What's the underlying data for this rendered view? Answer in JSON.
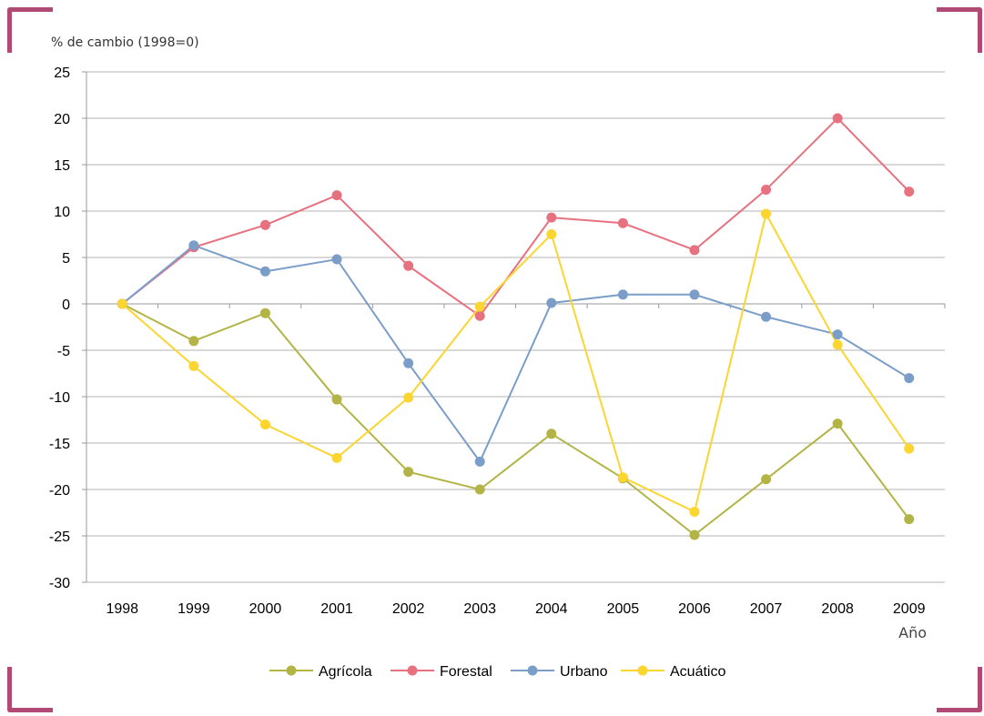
{
  "chart_data": {
    "type": "line",
    "ylabel": "% de cambio (1998=0)",
    "xlabel": "Año",
    "ylim": [
      -30,
      25
    ],
    "yticks": [
      25,
      20,
      15,
      10,
      5,
      0,
      -5,
      -10,
      -15,
      -20,
      -25,
      -30
    ],
    "categories": [
      "1998",
      "1999",
      "2000",
      "2001",
      "2002",
      "2003",
      "2004",
      "2005",
      "2006",
      "2007",
      "2008",
      "2009"
    ],
    "grid": true,
    "legend_position": "bottom",
    "series": [
      {
        "name": "Agrícola",
        "color": "#b3b446",
        "values": [
          0,
          -4,
          -1,
          -10.3,
          -18.1,
          -20,
          -14,
          -18.8,
          -24.9,
          -18.9,
          -12.9,
          -23.2
        ]
      },
      {
        "name": "Forestal",
        "color": "#e8717f",
        "values": [
          0,
          6.1,
          8.5,
          11.7,
          4.1,
          -1.3,
          9.3,
          8.7,
          5.8,
          12.3,
          20,
          12.1
        ]
      },
      {
        "name": "Urbano",
        "color": "#7b9ec9",
        "values": [
          0,
          6.3,
          3.5,
          4.8,
          -6.4,
          -17,
          0.1,
          1,
          1,
          -1.4,
          -3.3,
          -8
        ]
      },
      {
        "name": "Acuático",
        "color": "#fcd531",
        "values": [
          0,
          -6.7,
          -13,
          -16.6,
          -10.1,
          -0.3,
          7.5,
          -18.7,
          -22.4,
          9.7,
          -4.4,
          -15.6
        ]
      }
    ]
  }
}
